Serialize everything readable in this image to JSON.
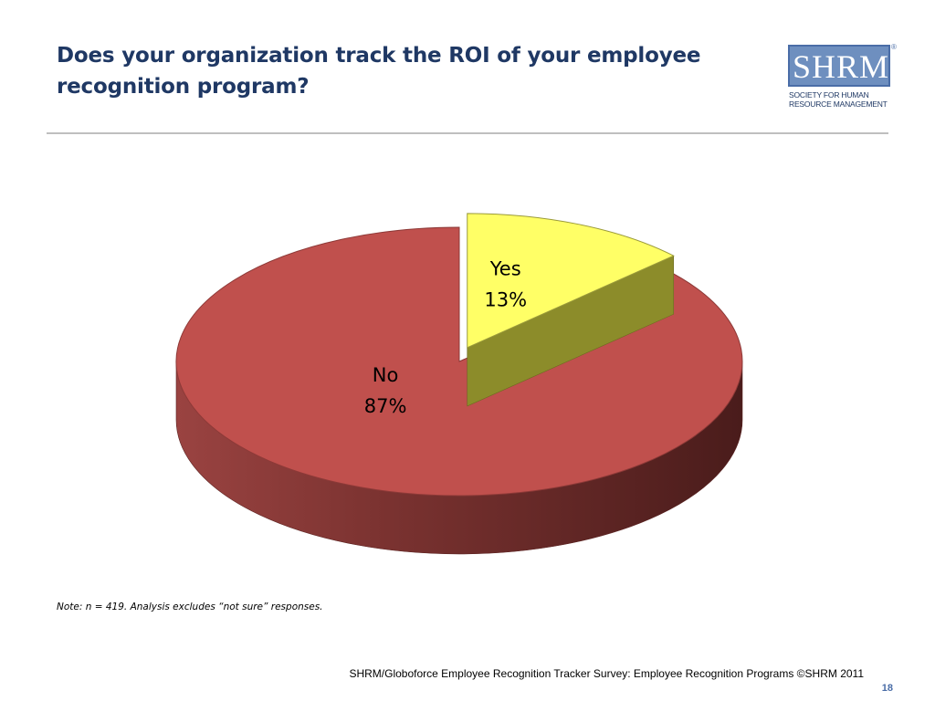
{
  "title": "Does your organization track the ROI of your employee recognition program?",
  "logo": {
    "letters": "SHRM",
    "registered": "®",
    "subtitle_line1": "SOCIETY FOR HUMAN",
    "subtitle_line2": "RESOURCE MANAGEMENT"
  },
  "chart_data": {
    "type": "pie",
    "style": "3d-exploded",
    "slices": [
      {
        "label": "Yes",
        "value": 13,
        "value_label": "13%",
        "color": "#FFFF66",
        "side_color": "#8C8C2A"
      },
      {
        "label": "No",
        "value": 87,
        "value_label": "87%",
        "color": "#C0504D",
        "side_color": "#7A2E2C"
      }
    ]
  },
  "note": "Note: n = 419. Analysis excludes “not sure” responses.",
  "source": "SHRM/Globoforce Employee Recognition Tracker Survey: Employee Recognition Programs ©SHRM 2011",
  "page_number": "18"
}
